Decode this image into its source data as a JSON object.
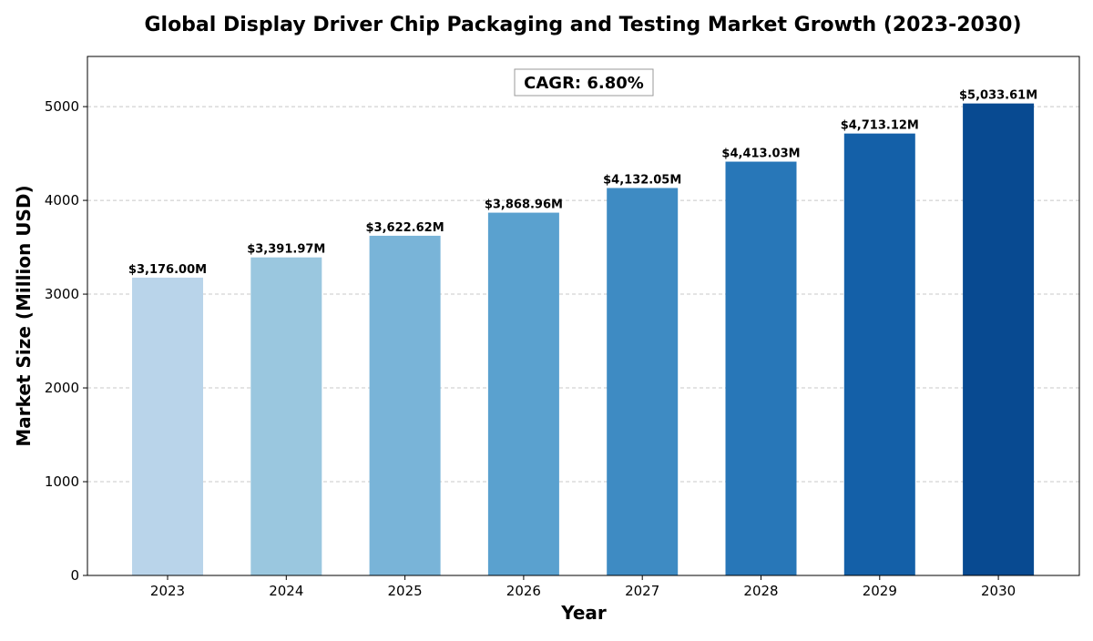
{
  "chart_data": {
    "type": "bar",
    "title": "Global Display Driver Chip Packaging and Testing Market Growth (2023-2030)",
    "xlabel": "Year",
    "ylabel": "Market Size (Million USD)",
    "categories": [
      "2023",
      "2024",
      "2025",
      "2026",
      "2027",
      "2028",
      "2029",
      "2030"
    ],
    "values": [
      3176.0,
      3391.97,
      3622.62,
      3868.96,
      4132.05,
      4413.03,
      4713.12,
      5033.61
    ],
    "value_labels": [
      "$3,176.00M",
      "$3,391.97M",
      "$3,622.62M",
      "$3,868.96M",
      "$4,132.05M",
      "$4,413.03M",
      "$4,713.12M",
      "$5,033.61M"
    ],
    "bar_colors": [
      "#b9d4ea",
      "#9ac7df",
      "#79b4d8",
      "#5aa1cf",
      "#3e8bc3",
      "#2877b8",
      "#1460a8",
      "#084a91"
    ],
    "ylim": [
      0,
      5535
    ],
    "yticks": [
      0,
      1000,
      2000,
      3000,
      4000,
      5000
    ],
    "ytick_labels": [
      "0",
      "1000",
      "2000",
      "3000",
      "4000",
      "5000"
    ],
    "grid": "y, dashed",
    "annotation": "CAGR: 6.80%"
  }
}
